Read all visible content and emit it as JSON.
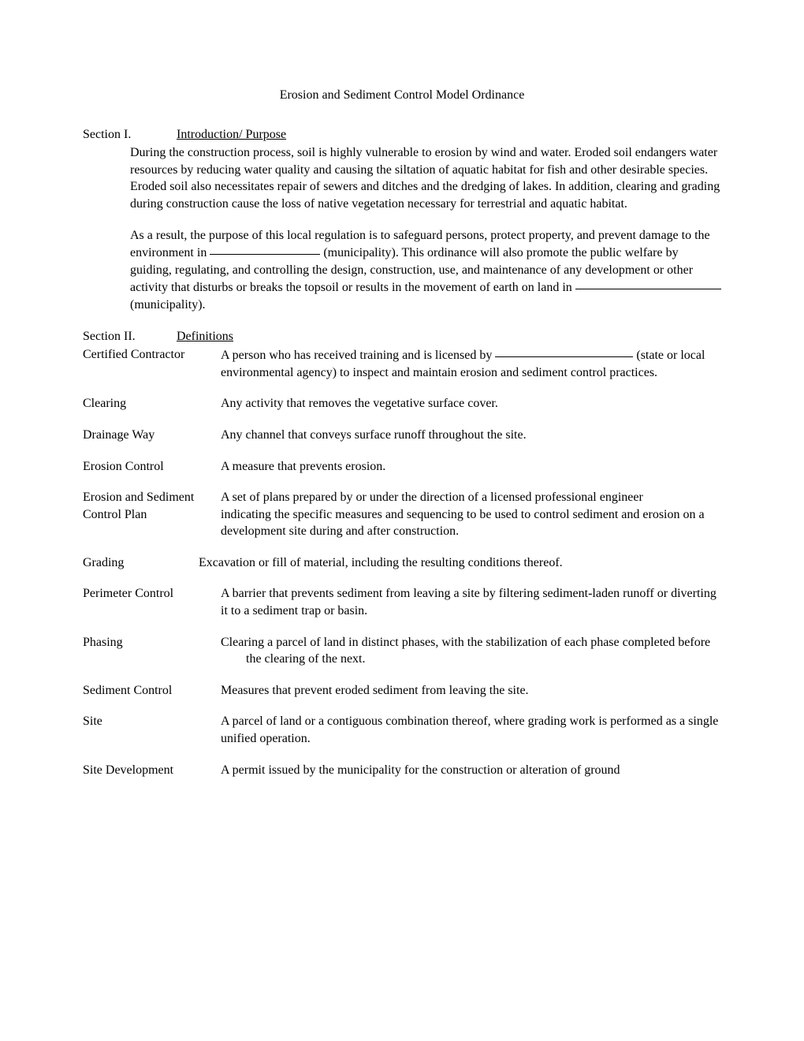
{
  "title": "Erosion and Sediment Control Model Ordinance",
  "section1": {
    "label": "Section I.",
    "title": "Introduction/ Purpose",
    "para1": "During the construction process, soil is highly vulnerable to erosion by wind and water.   Eroded soil endangers water resources by reducing water quality and causing the siltation of aquatic habitat for fish and other desirable species.   Eroded soil also necessitates repair of sewers and ditches and the dredging of lakes.   In addition, clearing and grading during construction cause the loss of native vegetation necessary for terrestrial and aquatic habitat.",
    "para2_a": "As a result, the purpose of this local regulation is to safeguard persons, protect property, and prevent damage to the environment in  ",
    "para2_b": " (municipality).  This ordinance will also promote the public welfare by guiding, regulating, and controlling the design, construction, use, and maintenance of any development or other activity that disturbs or breaks the topsoil or results in the movement of earth on land in ",
    "para2_c": " (municipality)."
  },
  "section2": {
    "label": "Section II.",
    "title": "Definitions"
  },
  "definitions": {
    "certified_contractor": {
      "term": "Certified Contractor",
      "body_a": "A person who has received training and is licensed by ",
      "body_b": " (state or local environmental agency) to inspect and maintain erosion and sediment control practices."
    },
    "clearing": {
      "term": "Clearing",
      "body": "Any activity that removes the vegetative surface cover."
    },
    "drainage_way": {
      "term": "Drainage Way",
      "body": "Any channel that conveys surface runoff throughout the site."
    },
    "erosion_control": {
      "term": "Erosion Control",
      "body": "A measure that prevents erosion."
    },
    "esc_plan": {
      "term1": "Erosion and Sediment",
      "body1": "A set of plans prepared by or under the direction of a licensed professional engineer",
      "term2": "Control Plan",
      "body2": "indicating the specific measures and sequencing to be used to control sediment and erosion on a development site during and after construction."
    },
    "grading": {
      "term": "Grading",
      "body": "Excavation or fill of material, including the resulting conditions thereof."
    },
    "perimeter_control": {
      "term": "Perimeter Control",
      "body": "A barrier that prevents sediment from leaving a site by filtering sediment-laden runoff or diverting it to a sediment trap or basin."
    },
    "phasing": {
      "term": "Phasing",
      "body": "Clearing a parcel of land in distinct phases, with the stabilization of each phase completed before the clearing of the next."
    },
    "sediment_control": {
      "term": "Sediment Control",
      "body": "Measures that prevent eroded sediment from leaving the site."
    },
    "site": {
      "term": "Site",
      "body": "A parcel of land or a contiguous combination thereof, where grading work is performed as a single unified operation."
    },
    "site_development": {
      "term": "Site Development",
      "body": "A permit issued by the municipality for the construction or alteration of ground"
    }
  },
  "blanks": {
    "w1": "140px",
    "w2": "185px",
    "w3": "175px"
  }
}
